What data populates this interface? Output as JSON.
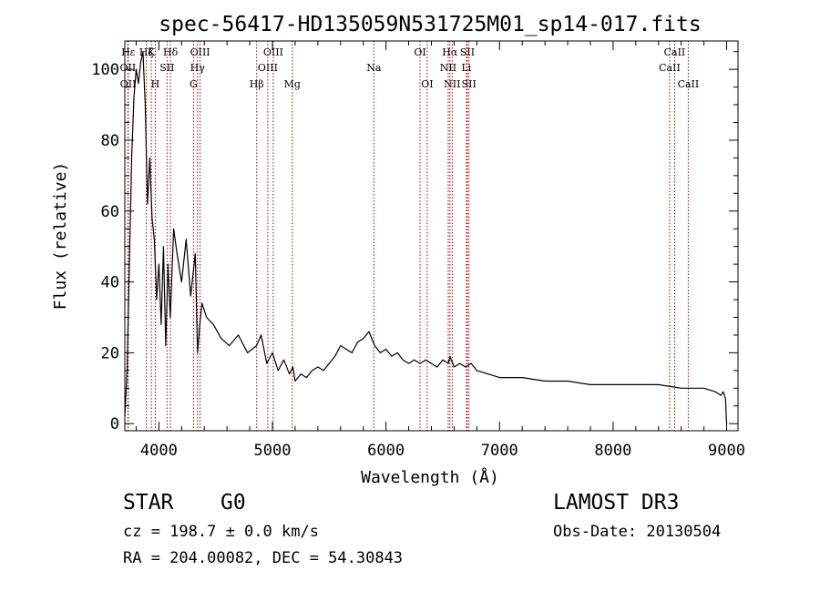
{
  "chart_data": {
    "type": "line",
    "title": "spec-56417-HD135059N531725M01_sp14-017.fits",
    "xlabel": "Wavelength (Å)",
    "ylabel": "Flux (relative)",
    "xlim": [
      3700,
      9100
    ],
    "ylim": [
      -2,
      108
    ],
    "xticks": [
      4000,
      5000,
      6000,
      7000,
      8000,
      9000
    ],
    "yticks": [
      0,
      20,
      40,
      60,
      80,
      100
    ],
    "grid": false,
    "series": [
      {
        "name": "flux",
        "x": [
          3700,
          3720,
          3740,
          3760,
          3780,
          3800,
          3820,
          3840,
          3860,
          3880,
          3900,
          3920,
          3940,
          3960,
          3980,
          4000,
          4020,
          4040,
          4060,
          4080,
          4100,
          4130,
          4160,
          4200,
          4240,
          4280,
          4320,
          4340,
          4360,
          4380,
          4420,
          4480,
          4550,
          4620,
          4700,
          4780,
          4860,
          4900,
          4950,
          5000,
          5050,
          5100,
          5150,
          5180,
          5200,
          5250,
          5300,
          5350,
          5400,
          5450,
          5500,
          5550,
          5600,
          5650,
          5700,
          5750,
          5800,
          5850,
          5900,
          5950,
          6000,
          6050,
          6100,
          6150,
          6200,
          6250,
          6300,
          6350,
          6400,
          6450,
          6500,
          6550,
          6563,
          6600,
          6650,
          6700,
          6750,
          6800,
          6900,
          7000,
          7200,
          7400,
          7600,
          7800,
          8000,
          8200,
          8400,
          8600,
          8800,
          8900,
          8950,
          8970,
          8990,
          9000
        ],
        "y": [
          2,
          15,
          45,
          75,
          92,
          100,
          96,
          102,
          105,
          90,
          62,
          75,
          58,
          52,
          35,
          45,
          28,
          50,
          22,
          45,
          30,
          55,
          48,
          40,
          52,
          36,
          48,
          20,
          28,
          34,
          30,
          28,
          24,
          22,
          25,
          20,
          22,
          25,
          17,
          20,
          15,
          18,
          14,
          16,
          12,
          14,
          13,
          15,
          16,
          15,
          17,
          19,
          22,
          21,
          20,
          23,
          24,
          26,
          22,
          20,
          21,
          19,
          20,
          18,
          17,
          18,
          17,
          18,
          17,
          16,
          18,
          17,
          19,
          16,
          17,
          16,
          17,
          15,
          14,
          13,
          13,
          12,
          12,
          11,
          11,
          11,
          11,
          10,
          10,
          9,
          8,
          9,
          7,
          0
        ]
      }
    ],
    "lines": [
      {
        "label": "Hε",
        "wavelength": 3730,
        "row": 1
      },
      {
        "label": "OII",
        "wavelength": 3727,
        "row": 2
      },
      {
        "label": "OII",
        "wavelength": 3729,
        "row": 3
      },
      {
        "label": "Hζ",
        "wavelength": 3889,
        "row": 1
      },
      {
        "label": "K",
        "wavelength": 3934,
        "row": 1
      },
      {
        "label": "H",
        "wavelength": 3968,
        "row": 3
      },
      {
        "label": "Hδ",
        "wavelength": 4102,
        "row": 1
      },
      {
        "label": "SII",
        "wavelength": 4072,
        "row": 2
      },
      {
        "label": "OIII",
        "wavelength": 4363,
        "row": 1
      },
      {
        "label": "Hγ",
        "wavelength": 4340,
        "row": 2
      },
      {
        "label": "G",
        "wavelength": 4305,
        "row": 3
      },
      {
        "label": "Hβ",
        "wavelength": 4861,
        "row": 3
      },
      {
        "label": "OIII",
        "wavelength": 5007,
        "row": 1
      },
      {
        "label": "OIII",
        "wavelength": 4959,
        "row": 2
      },
      {
        "label": "Mg",
        "wavelength": 5175,
        "row": 3
      },
      {
        "label": "Na",
        "wavelength": 5893,
        "row": 2
      },
      {
        "label": "OI",
        "wavelength": 6300,
        "row": 1
      },
      {
        "label": "OI",
        "wavelength": 6363,
        "row": 3
      },
      {
        "label": "Hα",
        "wavelength": 6563,
        "row": 1
      },
      {
        "label": "NII",
        "wavelength": 6548,
        "row": 2
      },
      {
        "label": "NII",
        "wavelength": 6583,
        "row": 3
      },
      {
        "label": "SII",
        "wavelength": 6717,
        "row": 1
      },
      {
        "label": "Li",
        "wavelength": 6708,
        "row": 2
      },
      {
        "label": "SII",
        "wavelength": 6731,
        "row": 3
      },
      {
        "label": "CaII",
        "wavelength": 8542,
        "row": 1
      },
      {
        "label": "CaII",
        "wavelength": 8498,
        "row": 2
      },
      {
        "label": "CaII",
        "wavelength": 8662,
        "row": 3
      }
    ]
  },
  "info": {
    "class": "STAR",
    "subclass": "G0",
    "survey": "LAMOST DR3",
    "cz": "cz = 198.7 ± 0.0 km/s",
    "obs_date": "Obs-Date: 20130504",
    "radec": "RA = 204.00082, DEC =  54.30843"
  },
  "colors": {
    "axis": "#000000",
    "line_marker": "#b30000",
    "spectrum": "#000000"
  }
}
